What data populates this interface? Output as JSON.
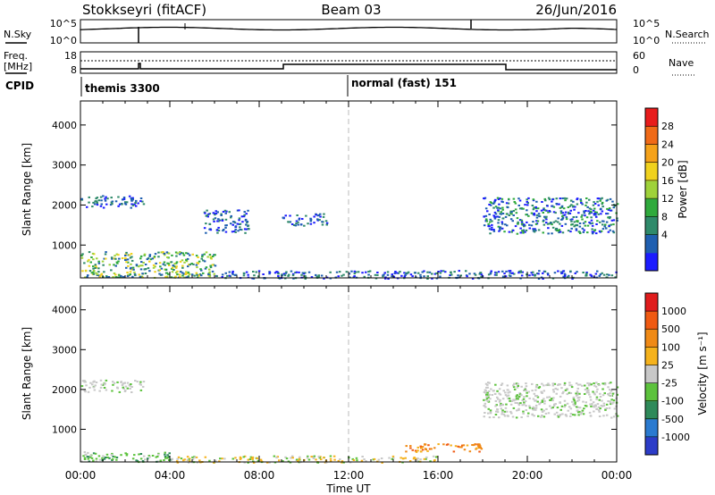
{
  "header": {
    "title": "Stokkseyri (fitACF)",
    "beam": "Beam 03",
    "date": "26/Jun/2016"
  },
  "top_panel": {
    "nsky_label": "N.Sky",
    "nsearch_label": "N.Search",
    "left_ticks": [
      "10^5",
      "10^0"
    ],
    "right_ticks": [
      "10^5",
      "10^0"
    ]
  },
  "freq_panel": {
    "freq_label": "Freq.",
    "freq_unit": "[MHz]",
    "nave_label": "Nave",
    "left_ticks": [
      "18",
      "8"
    ],
    "right_ticks": [
      "60",
      "0"
    ],
    "cpid_label": "CPID",
    "cpid_segments": [
      "themis 3300",
      "normal (fast) 151"
    ]
  },
  "chart_data": [
    {
      "type": "heatmap",
      "panel": "power",
      "xlabel": "",
      "ylabel": "Slant Range [km]",
      "xlim": [
        0,
        24
      ],
      "ylim": [
        180,
        4600
      ],
      "x_ticks": [
        "00:00",
        "04:00",
        "08:00",
        "12:00",
        "16:00",
        "20:00",
        "00:00"
      ],
      "y_ticks": [
        1000,
        2000,
        3000,
        4000
      ],
      "colorbar": {
        "label": "Power [dB]",
        "ticks": [
          "28",
          "24",
          "20",
          "16",
          "12",
          "8",
          "4"
        ],
        "colors": [
          "#1c1cff",
          "#1f5fb0",
          "#2f8a6a",
          "#2faa3c",
          "#9fd23a",
          "#f0d21e",
          "#f5a21a",
          "#f06a18",
          "#e81c1c"
        ]
      },
      "echo_bands": [
        {
          "t": [
            0.0,
            2.8
          ],
          "range": [
            1950,
            2250
          ],
          "level": 1
        },
        {
          "t": [
            5.5,
            7.5
          ],
          "range": [
            1300,
            1900
          ],
          "level": 1
        },
        {
          "t": [
            9.0,
            11.0
          ],
          "range": [
            1500,
            1800
          ],
          "level": 1
        },
        {
          "t": [
            18.0,
            24.0
          ],
          "range": [
            1300,
            2200
          ],
          "level": 2
        },
        {
          "t": [
            0.0,
            6.0
          ],
          "range": [
            200,
            850
          ],
          "level": 3
        },
        {
          "t": [
            6.0,
            24.0
          ],
          "range": [
            180,
            380
          ],
          "level": 1
        }
      ]
    },
    {
      "type": "heatmap",
      "panel": "velocity",
      "xlabel": "Time UT",
      "ylabel": "Slant Range [km]",
      "xlim": [
        0,
        24
      ],
      "ylim": [
        180,
        4600
      ],
      "x_ticks": [
        "00:00",
        "04:00",
        "08:00",
        "12:00",
        "16:00",
        "20:00",
        "00:00"
      ],
      "y_ticks": [
        1000,
        2000,
        3000,
        4000
      ],
      "colorbar": {
        "label": "Velocity [m s⁻¹]",
        "ticks": [
          "1000",
          "500",
          "100",
          "25",
          "-25",
          "-100",
          "-500",
          "-1000"
        ],
        "colors": [
          "#2c3cc8",
          "#2a7ad0",
          "#2f8a5a",
          "#5cc23c",
          "#c8c8c8",
          "#f5b21c",
          "#f08a16",
          "#f05a12",
          "#e01c1c"
        ]
      },
      "echo_bands": [
        {
          "t": [
            0.0,
            2.8
          ],
          "range": [
            1950,
            2250
          ],
          "class": "gray"
        },
        {
          "t": [
            18.0,
            24.0
          ],
          "range": [
            1300,
            2200
          ],
          "class": "gray"
        },
        {
          "t": [
            0.0,
            4.0
          ],
          "range": [
            200,
            450
          ],
          "class": "green"
        },
        {
          "t": [
            4.0,
            16.0
          ],
          "range": [
            180,
            350
          ],
          "class": "yellow"
        },
        {
          "t": [
            14.5,
            18.0
          ],
          "range": [
            450,
            650
          ],
          "class": "orange"
        }
      ]
    }
  ]
}
